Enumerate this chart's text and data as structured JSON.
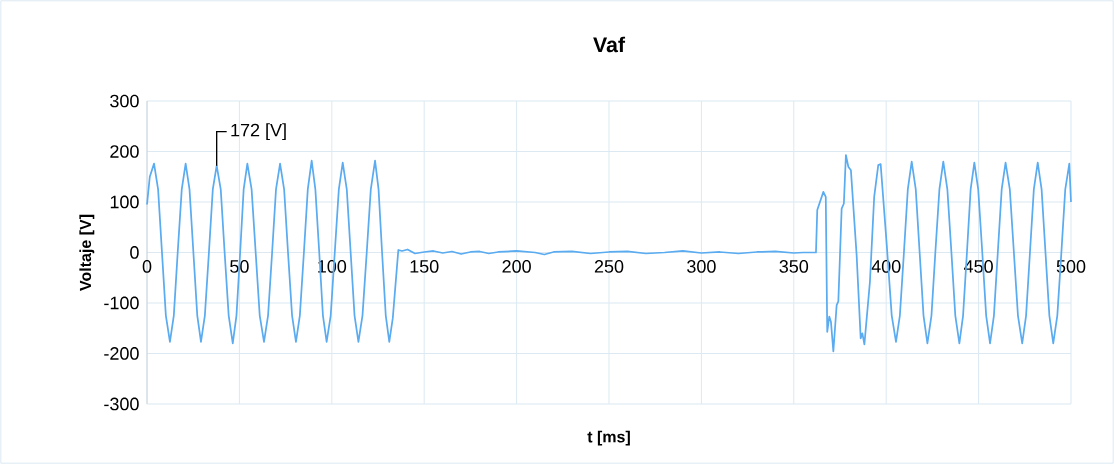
{
  "chart_data": {
    "type": "line",
    "title": "Vaf",
    "xlabel": "t [ms]",
    "ylabel": "Voltaje [V]",
    "xlim": [
      0,
      500
    ],
    "xticks": [
      0,
      50,
      100,
      150,
      200,
      250,
      300,
      350,
      400,
      450,
      500
    ],
    "ylim": [
      -300,
      300
    ],
    "yticks": [
      -300,
      -200,
      -100,
      0,
      100,
      200,
      300
    ],
    "grid": true,
    "legend": false,
    "marker": "none",
    "line_style": "solid",
    "annotations": [
      {
        "text": "172 [V]",
        "x": 37.7,
        "y": 172
      }
    ],
    "x": [
      0,
      1.5,
      3.8,
      6,
      8.1,
      10.2,
      12.4,
      14.5,
      16.6,
      18.8,
      20.9,
      23,
      25.1,
      27.2,
      29.2,
      31.3,
      33.5,
      35.6,
      37.7,
      39.9,
      42,
      44.2,
      46.4,
      48.4,
      50.4,
      52.3,
      54.3,
      56.6,
      58.8,
      61,
      63.3,
      65.5,
      67.7,
      69.8,
      72,
      74.2,
      76.3,
      78.5,
      80.6,
      82.7,
      84.9,
      87,
      89.1,
      91.1,
      93.2,
      95.2,
      97.2,
      99.4,
      101.6,
      103.8,
      105.9,
      108.1,
      110.2,
      112.3,
      114.4,
      116.6,
      118.9,
      121.1,
      123.4,
      125.3,
      127.2,
      129.2,
      131.1,
      133,
      135,
      136,
      138,
      141,
      145,
      150,
      155,
      160,
      165,
      170,
      175,
      180,
      185,
      190,
      200,
      210,
      215,
      220,
      230,
      240,
      250,
      260,
      270,
      280,
      290,
      300,
      310,
      320,
      330,
      340,
      350,
      355,
      362,
      362.7,
      366,
      367.3,
      368.1,
      369.2,
      370.1,
      371.4,
      373.2,
      374.1,
      375.9,
      377.1,
      378.2,
      379.5,
      380.9,
      384,
      386.2,
      387.1,
      388.2,
      391.2,
      393.5,
      395.7,
      397,
      400.3,
      403,
      405.3,
      407.4,
      409.6,
      411.7,
      413.8,
      416,
      418.1,
      420.2,
      422.3,
      424.5,
      426.6,
      428.8,
      430.9,
      433.1,
      435.3,
      437.4,
      439.6,
      441.6,
      443.7,
      445.7,
      447.7,
      449.8,
      452,
      454.1,
      456.2,
      458.3,
      460.4,
      462.5,
      464.6,
      466.9,
      469.1,
      471.3,
      473.6,
      475.7,
      477.8,
      479.9,
      482,
      484.1,
      486.2,
      488.3,
      490.4,
      492.6,
      494.8,
      496.9,
      499.1,
      500
    ],
    "series": [
      {
        "color": "#5aabf0",
        "values": [
          95,
          150,
          176,
          125,
          0,
          -125,
          -177,
          -125,
          0,
          125,
          176,
          125,
          0,
          -125,
          -177,
          -125,
          0,
          125,
          172,
          125,
          0,
          -125,
          -180,
          -125,
          0,
          125,
          176,
          125,
          0,
          -125,
          -177,
          -125,
          0,
          125,
          176,
          125,
          0,
          -125,
          -177,
          -125,
          0,
          125,
          182,
          125,
          0,
          -125,
          -177,
          -125,
          0,
          125,
          178,
          125,
          0,
          -125,
          -177,
          -125,
          0,
          125,
          182,
          125,
          0,
          -125,
          -177,
          -130,
          -40,
          5,
          3,
          6,
          -2,
          1,
          3,
          -1,
          2,
          -3,
          1,
          2,
          -2,
          1,
          3,
          0,
          -4,
          1,
          2,
          -2,
          1,
          2,
          -2,
          0,
          3,
          -1,
          1,
          -2,
          1,
          2,
          -1,
          0,
          0,
          84,
          120,
          110,
          -157,
          -127,
          -137,
          -196,
          -104,
          -97,
          87,
          97,
          193,
          170,
          163,
          -5,
          -170,
          -160,
          -182,
          -58,
          110,
          173,
          175,
          15,
          -125,
          -177,
          -125,
          0,
          125,
          180,
          125,
          0,
          -125,
          -180,
          -125,
          0,
          125,
          180,
          125,
          0,
          -125,
          -180,
          -125,
          0,
          125,
          178,
          125,
          0,
          -125,
          -180,
          -125,
          0,
          125,
          178,
          125,
          0,
          -125,
          -180,
          -125,
          0,
          125,
          178,
          125,
          0,
          -125,
          -180,
          -125,
          0,
          125,
          176,
          100
        ]
      }
    ]
  }
}
